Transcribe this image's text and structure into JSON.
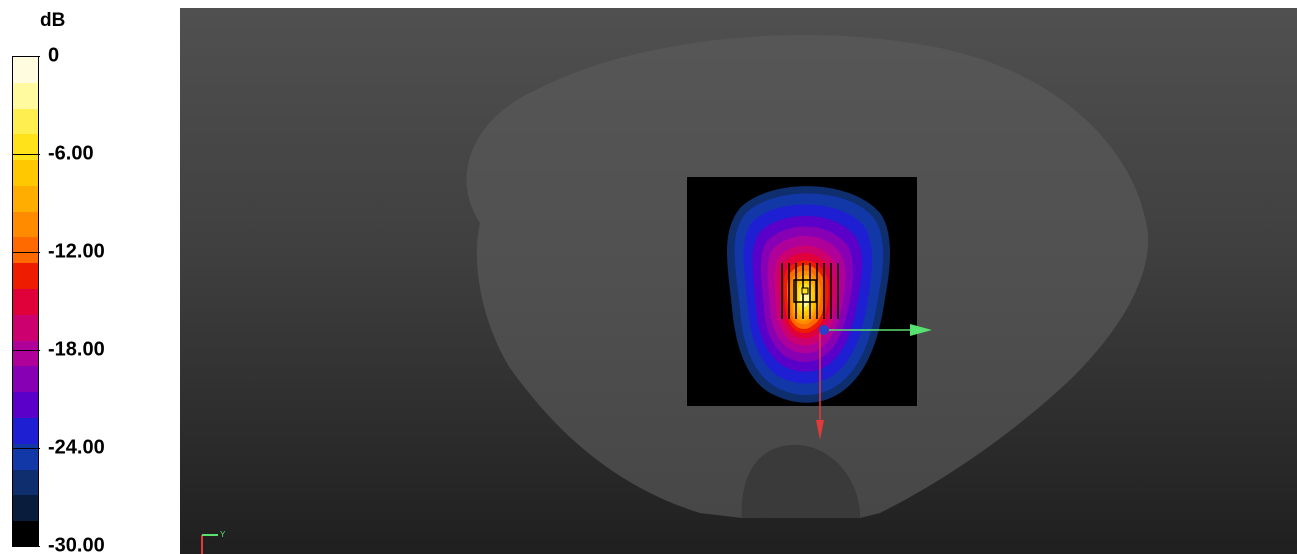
{
  "legend": {
    "unit": "dB",
    "ticks": [
      {
        "label": "0",
        "value": 0
      },
      {
        "label": "-6.00",
        "value": -6
      },
      {
        "label": "-12.00",
        "value": -12
      },
      {
        "label": "-18.00",
        "value": -18
      },
      {
        "label": "-24.00",
        "value": -24
      },
      {
        "label": "-30.00",
        "value": -30
      }
    ],
    "range": [
      -30,
      0
    ],
    "swatches": [
      "#fffce0",
      "#fff9a0",
      "#ffee50",
      "#ffe21a",
      "#ffc800",
      "#ffad00",
      "#ff8c00",
      "#ff6a00",
      "#ee1c00",
      "#e0003a",
      "#cc006e",
      "#b0009a",
      "#8800b4",
      "#5a00c8",
      "#1e1ed2",
      "#1238a8",
      "#0e2e6e",
      "#0a1c3c",
      "#000000"
    ]
  },
  "viewport": {
    "background_top": "#505050",
    "background_bottom": "#1f1f1f",
    "phantom_color": "#5a5a5a",
    "measurement_area_color": "#000000",
    "axis_colors": {
      "x": "#e03a3a",
      "y": "#58e070",
      "origin": "#2a40c8"
    },
    "mini_axis_label": "Y"
  }
}
